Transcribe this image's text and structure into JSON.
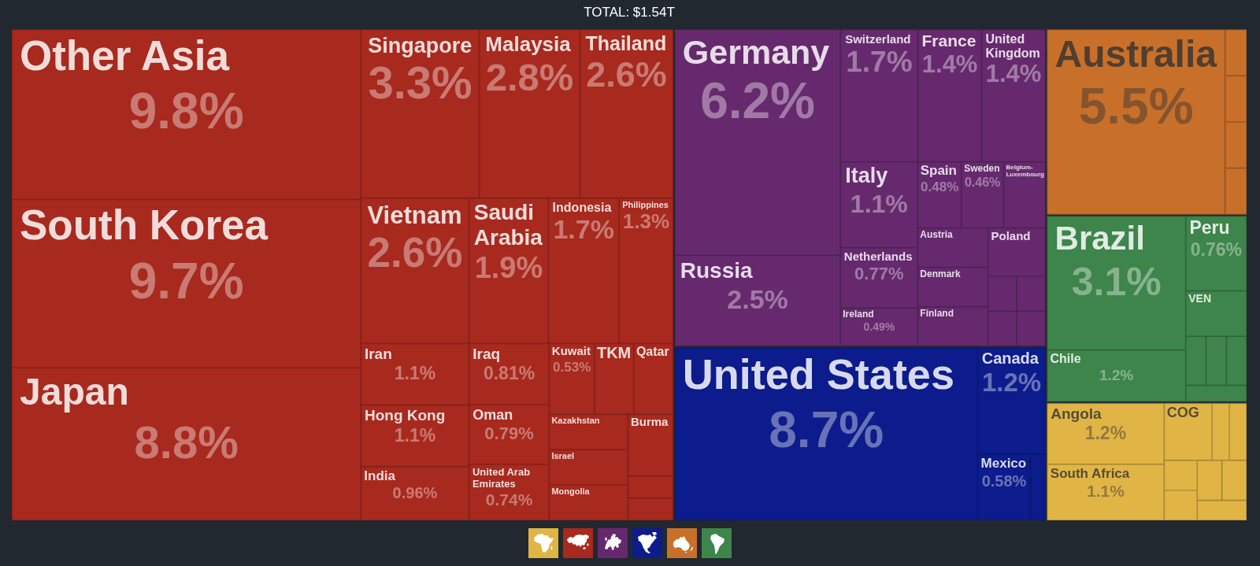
{
  "chart_data": {
    "type": "other",
    "title": "TOTAL: $1.54T",
    "categories": [
      "Other Asia",
      "South Korea",
      "Japan",
      "Singapore",
      "Malaysia",
      "Thailand",
      "Vietnam",
      "Saudi Arabia",
      "Indonesia",
      "Philippines",
      "Iran",
      "Hong Kong",
      "India",
      "Iraq",
      "Oman",
      "United Arab Emirates",
      "Kuwait",
      "TKM",
      "Qatar",
      "Kazakhstan",
      "Israel",
      "Mongolia",
      "Burma",
      null,
      null,
      "Germany",
      "Russia",
      "Switzerland",
      "France",
      "United Kingdom",
      "Italy",
      "Netherlands",
      "Ireland",
      "Spain",
      "Sweden",
      "Belgium-Luxembourg",
      "Austria",
      "Denmark",
      "Finland",
      "Poland",
      null,
      null,
      null,
      null,
      "United States",
      "Canada",
      "Mexico",
      null,
      "Australia",
      null,
      null,
      null,
      null,
      "Brazil",
      "Chile",
      "Peru",
      "VEN",
      null,
      null,
      null,
      null,
      "Angola",
      "South Africa",
      "COG",
      null,
      null,
      null,
      null,
      null,
      null,
      null
    ],
    "values": [
      9.8,
      9.7,
      8.8,
      3.3,
      2.8,
      2.6,
      2.6,
      1.9,
      1.7,
      1.3,
      1.1,
      1.1,
      0.96,
      0.81,
      0.79,
      0.74,
      0.53,
      null,
      null,
      null,
      null,
      null,
      null,
      null,
      null,
      6.2,
      2.5,
      1.7,
      1.4,
      1.4,
      1.1,
      0.77,
      0.49,
      0.48,
      0.46,
      null,
      null,
      null,
      null,
      null,
      null,
      null,
      null,
      null,
      8.7,
      1.2,
      0.58,
      null,
      5.5,
      null,
      null,
      null,
      null,
      3.1,
      1.2,
      0.76,
      null,
      null,
      null,
      null,
      null,
      1.2,
      1.1,
      null,
      null,
      null,
      null,
      null,
      null,
      null,
      null
    ],
    "value_labels": [
      "9.8%",
      "9.7%",
      "8.8%",
      "3.3%",
      "2.8%",
      "2.6%",
      "2.6%",
      "1.9%",
      "1.7%",
      "1.3%",
      "1.1%",
      "1.1%",
      "0.96%",
      "0.81%",
      "0.79%",
      "0.74%",
      "0.53%",
      null,
      null,
      null,
      null,
      null,
      null,
      null,
      null,
      "6.2%",
      "2.5%",
      "1.7%",
      "1.4%",
      "1.4%",
      "1.1%",
      "0.77%",
      "0.49%",
      "0.48%",
      "0.46%",
      null,
      null,
      null,
      null,
      null,
      null,
      null,
      null,
      null,
      "8.7%",
      "1.2%",
      "0.58%",
      null,
      "5.5%",
      null,
      null,
      null,
      null,
      "3.1%",
      "1.2%",
      "0.76%",
      null,
      null,
      null,
      null,
      null,
      "1.2%",
      "1.1%",
      null,
      null,
      null,
      null,
      null,
      null,
      null,
      null
    ],
    "colors": [
      "#a8291e",
      "#a8291e",
      "#a8291e",
      "#a8291e",
      "#a8291e",
      "#a8291e",
      "#a8291e",
      "#a8291e",
      "#a8291e",
      "#a8291e",
      "#a8291e",
      "#a8291e",
      "#a8291e",
      "#a8291e",
      "#a8291e",
      "#a8291e",
      "#a8291e",
      "#a8291e",
      "#a8291e",
      "#a8291e",
      "#a8291e",
      "#a8291e",
      "#a8291e",
      "#a8291e",
      "#a8291e",
      "#66296e",
      "#66296e",
      "#66296e",
      "#66296e",
      "#66296e",
      "#66296e",
      "#66296e",
      "#66296e",
      "#66296e",
      "#66296e",
      "#66296e",
      "#66296e",
      "#66296e",
      "#66296e",
      "#66296e",
      "#66296e",
      "#66296e",
      "#66296e",
      "#66296e",
      "#0c1c8c",
      "#0c1c8c",
      "#0c1c8c",
      "#0c1c8c",
      "#c8702a",
      "#c8702a",
      "#c8702a",
      "#c8702a",
      "#c8702a",
      "#3d854a",
      "#3d854a",
      "#3d854a",
      "#3d854a",
      "#3d854a",
      "#3d854a",
      "#3d854a",
      "#3d854a",
      "#e0b545",
      "#e0b545",
      "#e0b545",
      "#e0b545",
      "#e0b545",
      "#e0b545",
      "#e0b545",
      "#e0b545",
      "#e0b545",
      "#e0b545"
    ]
  }
}
